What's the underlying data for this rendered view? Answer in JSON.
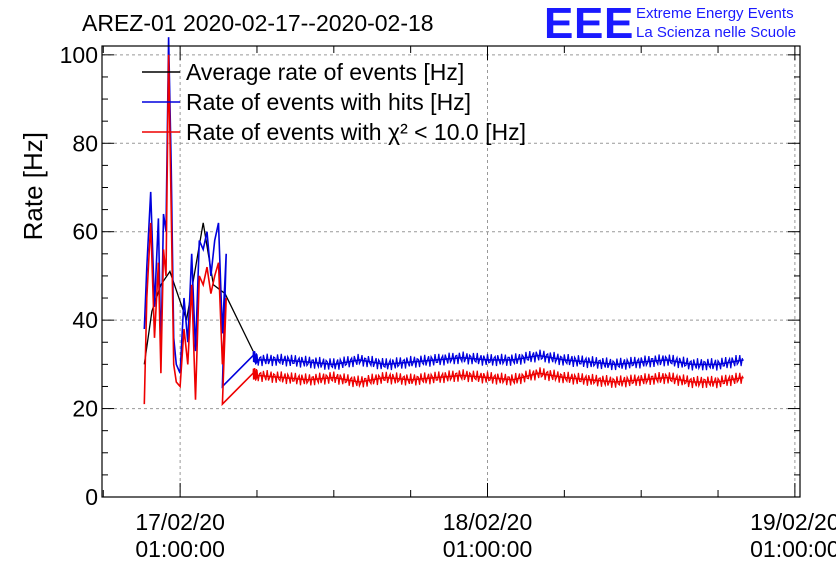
{
  "title": "AREZ-01 2020-02-17--2020-02-18",
  "logo": {
    "mark": "EEE",
    "line1": "Extreme Energy Events",
    "line2": "La Scienza nelle Scuole",
    "color": "#1a1aff"
  },
  "chart_data": {
    "type": "line",
    "ylabel": "Rate [Hz]",
    "ylim": [
      0,
      102
    ],
    "yticks": [
      0,
      20,
      40,
      60,
      80,
      100
    ],
    "x_ticks": [
      {
        "line1": "17/02/20",
        "line2": "01:00:00",
        "t": 0
      },
      {
        "line1": "18/02/20",
        "line2": "01:00:00",
        "t": 24
      },
      {
        "line1": "19/02/20",
        "line2": "01:00:00",
        "t": 48
      }
    ],
    "xlim": [
      -6.1,
      48.4
    ],
    "grid": true,
    "legend_position": "top-left",
    "series": [
      {
        "name": "Average rate of events [Hz]",
        "color": "#000000",
        "x": [
          -2.8,
          -2.2,
          -1.5,
          -0.8,
          0.5,
          1.8,
          2.6,
          3.5,
          5.7
        ],
        "y": [
          30,
          42,
          48,
          51,
          40,
          62,
          48,
          46,
          33
        ]
      },
      {
        "name": "Rate of events with hits [Hz]",
        "color": "#0000dd",
        "x": [
          -2.8,
          -2.6,
          -2.3,
          -2.0,
          -1.7,
          -1.5,
          -1.3,
          -1.1,
          -0.9,
          -0.7,
          -0.5,
          -0.3,
          0,
          0.3,
          0.6,
          0.9,
          1.2,
          1.5,
          1.8,
          2.1,
          2.4,
          2.7,
          3.0,
          3.3,
          3.6,
          3.3,
          5.7,
          6.0,
          8,
          10,
          12,
          14,
          16,
          18,
          20,
          22,
          24,
          26,
          28,
          30,
          32,
          34,
          36,
          38,
          40,
          42,
          44
        ],
        "y": [
          38,
          52,
          69,
          43,
          63,
          32,
          64,
          60,
          110,
          75,
          36,
          30,
          28,
          45,
          35,
          55,
          33,
          58,
          56,
          60,
          50,
          58,
          62,
          37,
          55,
          25,
          32,
          31,
          31,
          30.5,
          30,
          31,
          30,
          30.5,
          31,
          31.5,
          31,
          31,
          32,
          31,
          30.5,
          30,
          30.5,
          31,
          30,
          30,
          31
        ]
      },
      {
        "name": "Rate of events with χ² < 10.0 [Hz]",
        "color": "#ee0000",
        "x": [
          -2.8,
          -2.6,
          -2.3,
          -2.0,
          -1.7,
          -1.5,
          -1.3,
          -1.1,
          -0.9,
          -0.7,
          -0.5,
          -0.3,
          0,
          0.3,
          0.6,
          0.9,
          1.2,
          1.5,
          1.8,
          2.1,
          2.4,
          2.7,
          3.0,
          3.3,
          3.6,
          3.3,
          5.7,
          6.0,
          8,
          10,
          12,
          14,
          16,
          18,
          20,
          22,
          24,
          26,
          28,
          30,
          32,
          34,
          36,
          38,
          40,
          42,
          44
        ],
        "y": [
          21,
          45,
          62,
          36,
          53,
          28,
          56,
          50,
          100,
          65,
          30,
          26,
          25,
          38,
          30,
          48,
          22,
          50,
          48,
          52,
          46,
          50,
          53,
          30,
          45,
          21,
          28,
          27.5,
          27,
          26.5,
          27,
          26,
          27,
          26.5,
          27,
          27.5,
          27,
          26.5,
          28,
          27,
          26.5,
          26,
          26.5,
          27,
          26,
          26,
          27
        ]
      }
    ]
  }
}
